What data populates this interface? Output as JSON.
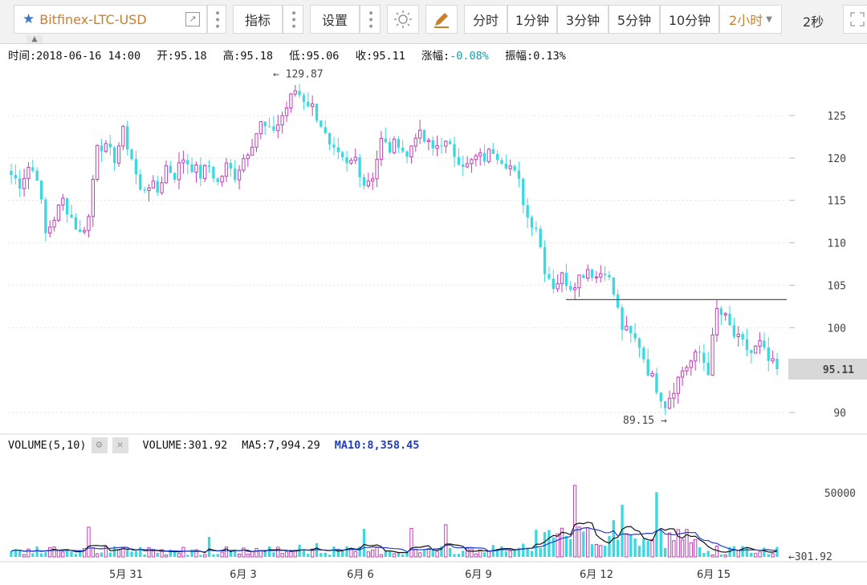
{
  "toolbar": {
    "symbol": "Bitfinex-LTC-USD",
    "indicator_label": "指标",
    "settings_label": "设置",
    "intervals": [
      "分时",
      "1分钟",
      "3分钟",
      "5分钟",
      "10分钟",
      "2小时"
    ],
    "active_interval": "2小时",
    "refresh_label": "2秒"
  },
  "info": {
    "time": "时间:2018-06-16 14:00",
    "open": "开:95.18",
    "high": "高:95.18",
    "low": "低:95.06",
    "close": "收:95.11",
    "change_label": "涨幅:",
    "change_value": "-0.08%",
    "amplitude": "振幅:0.13%"
  },
  "volume_panel": {
    "title": "VOLUME(5,10)",
    "volume": "VOLUME:301.92",
    "ma5": "MA5:7,994.29",
    "ma10": "MA10:8,358.45",
    "last_value_label": "←301.92",
    "axis_tick": "50000"
  },
  "chart_data": {
    "type": "candlestick",
    "price_ticks": [
      125,
      120,
      115,
      110,
      105,
      100,
      90
    ],
    "current_price": "95.11",
    "max_marker": "← 129.87",
    "min_marker": "89.15 →",
    "horizontal_line": 103.3,
    "x_labels": [
      "5月 31",
      "6月 3",
      "6月 6",
      "6月 9",
      "6月 12",
      "6月 15"
    ],
    "close_path": [
      118,
      117,
      119,
      118,
      111,
      113,
      115,
      113,
      111,
      113,
      122,
      121,
      120,
      123,
      120,
      116,
      117,
      116,
      119,
      118,
      120,
      119,
      118,
      119,
      117,
      119,
      118,
      120,
      122,
      124,
      123,
      124,
      126,
      128,
      127,
      126,
      124,
      121,
      120,
      119,
      120,
      117,
      118,
      122,
      121,
      122,
      120,
      123,
      122,
      121,
      122,
      121,
      120,
      119,
      120,
      120,
      121,
      120,
      119,
      117,
      113,
      112,
      107,
      105,
      106,
      105,
      106,
      107,
      106,
      107,
      104,
      100,
      99,
      98,
      95,
      93,
      91,
      93,
      95,
      96,
      97,
      95,
      102,
      101,
      99,
      98,
      97,
      98,
      96,
      95.11
    ],
    "volume_axis_max": 60000
  },
  "colors": {
    "up": "#c040b8",
    "down": "#3ad8e0",
    "ma5": "#111111",
    "ma10": "#1e3cc8"
  }
}
